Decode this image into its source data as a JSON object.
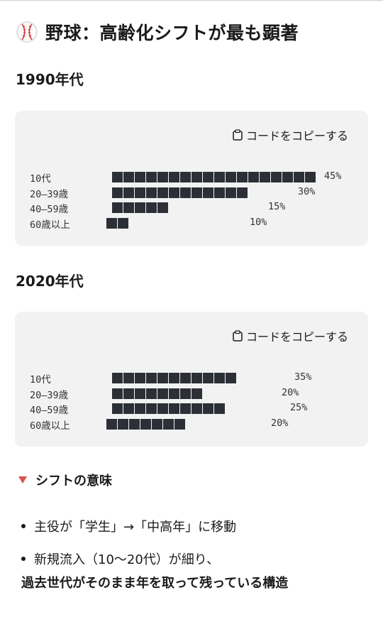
{
  "title": {
    "emoji_icon": "baseball-icon",
    "text": "野球：高齢化シフトが最も顕著"
  },
  "copy_label": "コードをコピーする",
  "blocks": [
    {
      "heading": "1990年代",
      "rows": [
        {
          "label": "10代",
          "blocks": 18,
          "value": "45%"
        },
        {
          "label": "20–39歳",
          "blocks": 12,
          "value": "30%"
        },
        {
          "label": "40–59歳",
          "blocks": 5,
          "value": "15%"
        },
        {
          "label": "60歳以上",
          "blocks": 2,
          "value": "10%"
        }
      ]
    },
    {
      "heading": "2020年代",
      "rows": [
        {
          "label": "10代",
          "blocks": 11,
          "value": "35%"
        },
        {
          "label": "20–39歳",
          "blocks": 8,
          "value": "20%"
        },
        {
          "label": "40–59歳",
          "blocks": 10,
          "value": "25%"
        },
        {
          "label": "60歳以上",
          "blocks": 7,
          "value": "20%"
        }
      ]
    }
  ],
  "meaning": {
    "heading": "シフトの意味",
    "bullets": [
      {
        "line1": "主役が「学生」→「中高年」に移動",
        "line2": ""
      },
      {
        "line1": "新規流入（10〜20代）が細り、",
        "line2": "過去世代がそのまま年を取って残っている構造"
      }
    ]
  }
}
